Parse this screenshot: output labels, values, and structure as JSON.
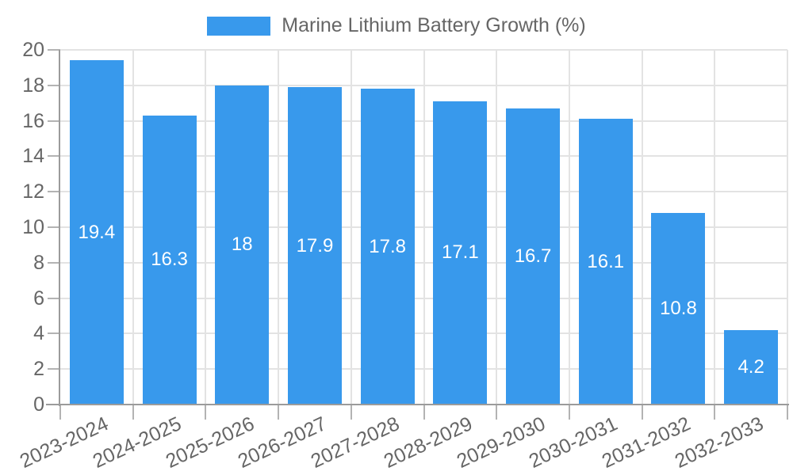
{
  "chart_data": {
    "type": "bar",
    "title": "Marine Lithium Battery Growth (%)",
    "legend_position": "top",
    "categories": [
      "2023-2024",
      "2024-2025",
      "2025-2026",
      "2026-2027",
      "2027-2028",
      "2028-2029",
      "2029-2030",
      "2030-2031",
      "2031-2032",
      "2032-2033"
    ],
    "values": [
      19.4,
      16.3,
      18,
      17.9,
      17.8,
      17.1,
      16.7,
      16.1,
      10.8,
      4.2
    ],
    "xlabel": "",
    "ylabel": "",
    "ylim": [
      0,
      20
    ],
    "yticks": [
      0,
      2,
      4,
      6,
      8,
      10,
      12,
      14,
      16,
      18,
      20
    ],
    "grid": true,
    "colors": {
      "bar": "#3899ec",
      "grid": "#e3e3e3",
      "axis": "#9b9b9b",
      "tick": "#b3b3b3",
      "text": "#666666",
      "bar_label": "#ffffff",
      "background": "#ffffff"
    }
  }
}
